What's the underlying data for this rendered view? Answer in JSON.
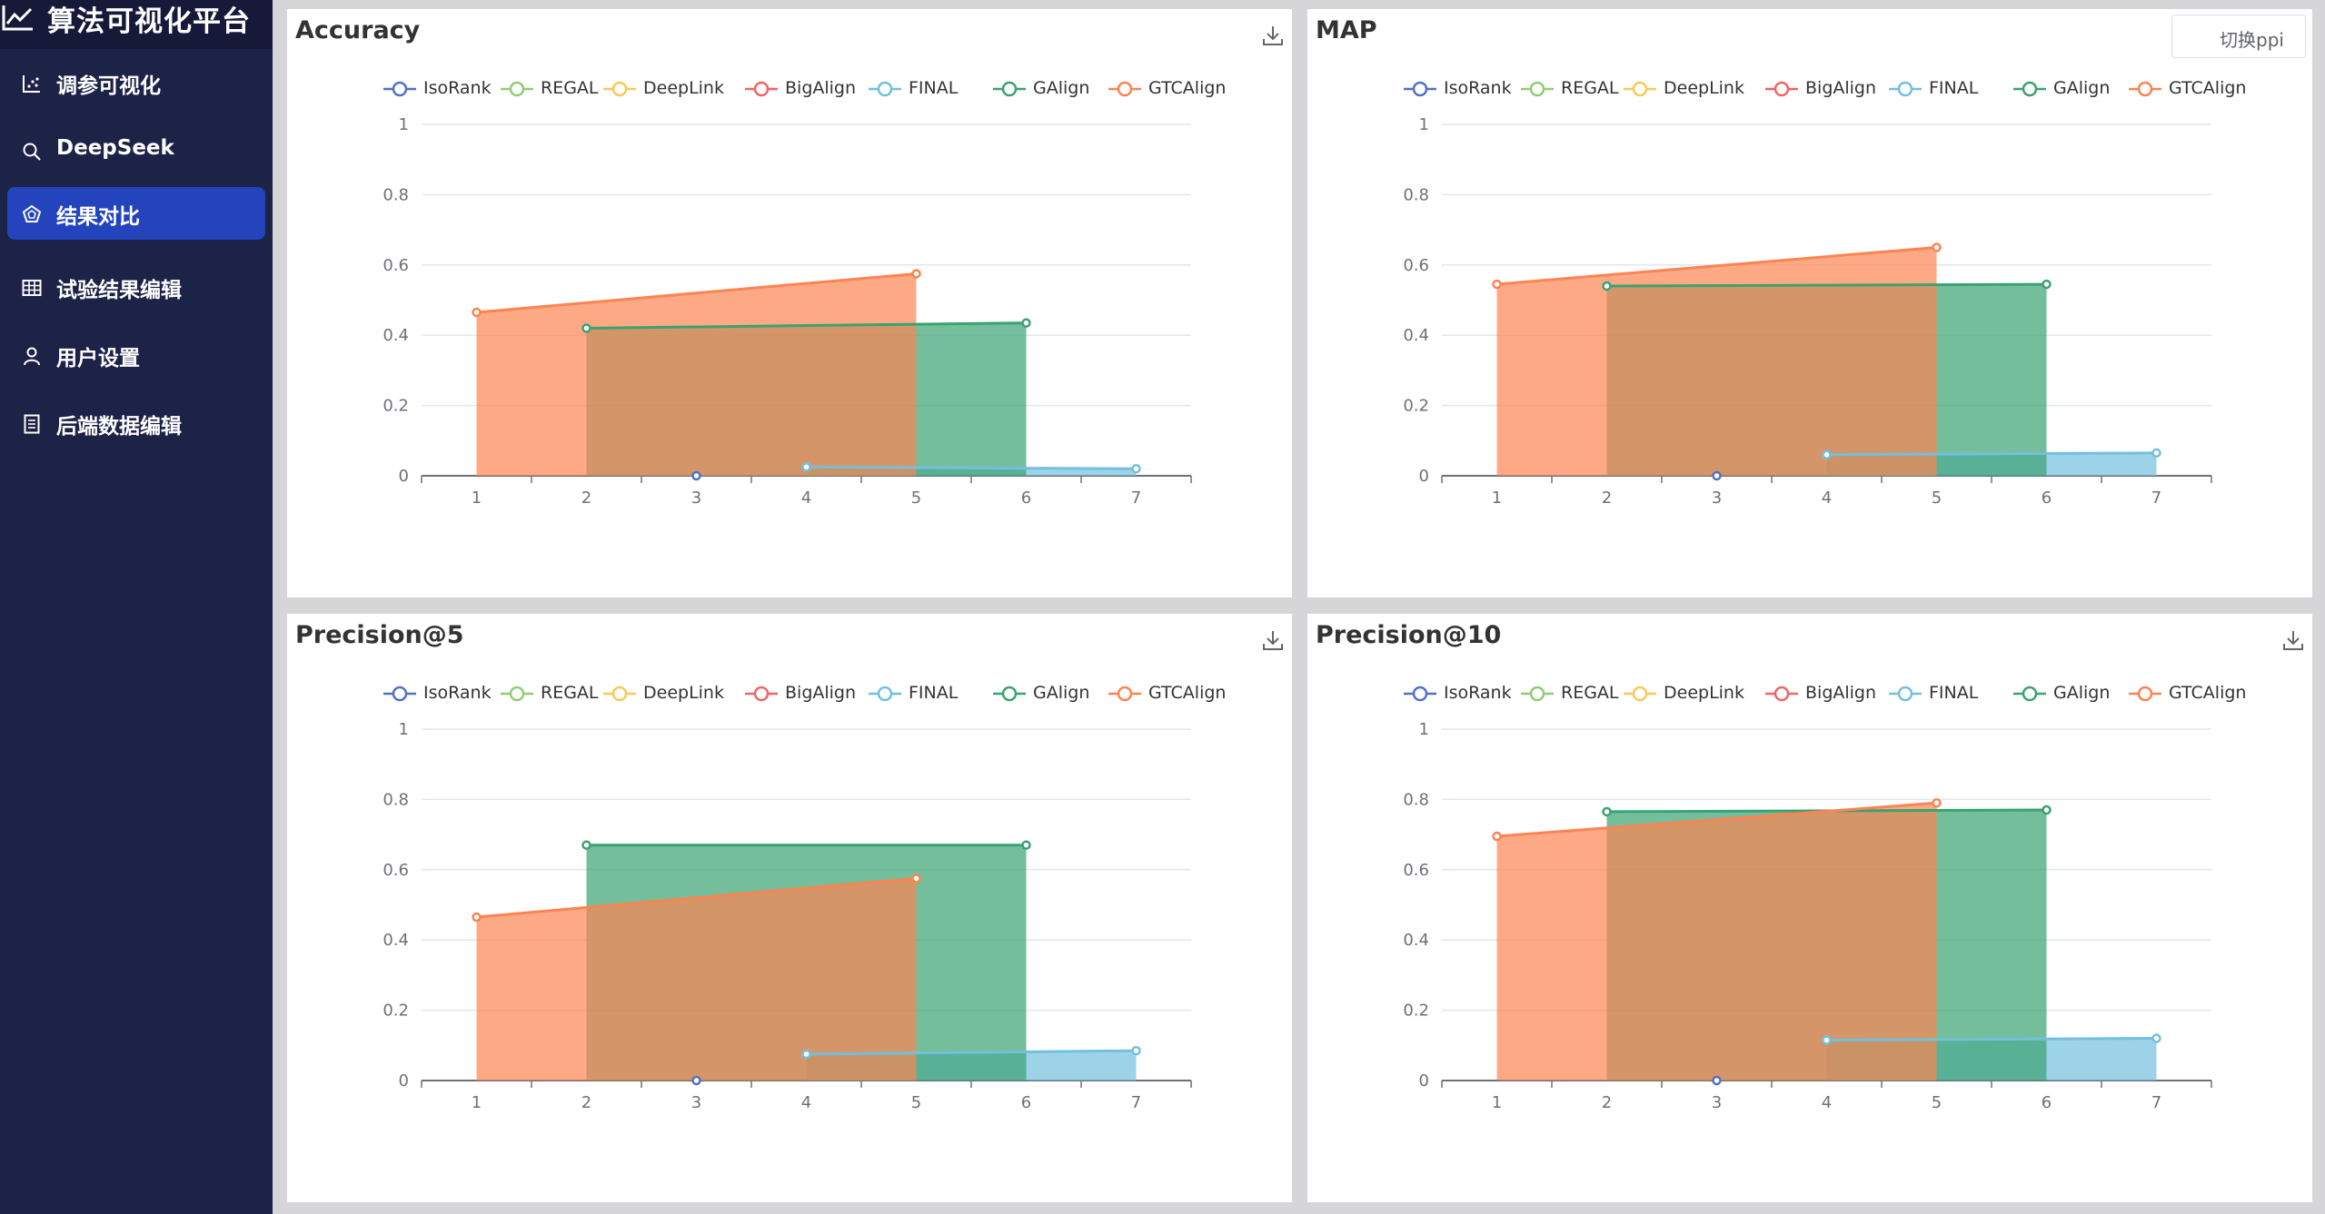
{
  "app": {
    "title": "算法可视化平台",
    "brand_icon": "line-chart-icon"
  },
  "sidebar": {
    "items": [
      {
        "label": "调参可视化",
        "icon": "scatter-chart-icon",
        "active": false
      },
      {
        "label": "DeepSeek",
        "icon": "search-icon",
        "active": false
      },
      {
        "label": "结果对比",
        "icon": "radar-icon",
        "active": true
      },
      {
        "label": "试验结果编辑",
        "icon": "grid-table-icon",
        "active": false
      },
      {
        "label": "用户设置",
        "icon": "user-icon",
        "active": false
      },
      {
        "label": "后端数据编辑",
        "icon": "document-icon",
        "active": false
      }
    ]
  },
  "header": {
    "switch_button": "切换ppi"
  },
  "colors": {
    "sidebar_bg": "#1d2247",
    "active_item": "#2344bd",
    "IsoRank": "#5470c6",
    "REGAL": "#91cc75",
    "DeepLink": "#fac858",
    "BigAlign": "#ee6666",
    "FINAL": "#73c0de",
    "GAlign": "#3ba272",
    "GTCAlign": "#fc8452"
  },
  "legend": [
    "IsoRank",
    "REGAL",
    "DeepLink",
    "BigAlign",
    "FINAL",
    "GAlign",
    "GTCAlign"
  ],
  "chart_data": [
    {
      "type": "area",
      "title": "Accuracy",
      "x": [
        1,
        2,
        3,
        4,
        5,
        6,
        7
      ],
      "ylim": [
        0,
        1
      ],
      "yticks": [
        0,
        0.2,
        0.4,
        0.6,
        0.8,
        1
      ],
      "grid": true,
      "legend_position": "top",
      "series": [
        {
          "name": "IsoRank",
          "points": [
            [
              3,
              0.0
            ]
          ]
        },
        {
          "name": "REGAL",
          "points": []
        },
        {
          "name": "DeepLink",
          "points": []
        },
        {
          "name": "BigAlign",
          "points": []
        },
        {
          "name": "FINAL",
          "points": [
            [
              4,
              0.025
            ],
            [
              7,
              0.02
            ]
          ]
        },
        {
          "name": "GAlign",
          "points": [
            [
              2,
              0.42
            ],
            [
              6,
              0.435
            ]
          ]
        },
        {
          "name": "GTCAlign",
          "points": [
            [
              1,
              0.465
            ],
            [
              5,
              0.575
            ]
          ]
        }
      ]
    },
    {
      "type": "area",
      "title": "MAP",
      "x": [
        1,
        2,
        3,
        4,
        5,
        6,
        7
      ],
      "ylim": [
        0,
        1
      ],
      "yticks": [
        0,
        0.2,
        0.4,
        0.6,
        0.8,
        1
      ],
      "grid": true,
      "legend_position": "top",
      "series": [
        {
          "name": "IsoRank",
          "points": [
            [
              3,
              0.0
            ]
          ]
        },
        {
          "name": "REGAL",
          "points": []
        },
        {
          "name": "DeepLink",
          "points": []
        },
        {
          "name": "BigAlign",
          "points": []
        },
        {
          "name": "FINAL",
          "points": [
            [
              4,
              0.06
            ],
            [
              7,
              0.065
            ]
          ]
        },
        {
          "name": "GAlign",
          "points": [
            [
              2,
              0.54
            ],
            [
              6,
              0.545
            ]
          ]
        },
        {
          "name": "GTCAlign",
          "points": [
            [
              1,
              0.545
            ],
            [
              5,
              0.65
            ]
          ]
        }
      ]
    },
    {
      "type": "area",
      "title": "Precision@5",
      "x": [
        1,
        2,
        3,
        4,
        5,
        6,
        7
      ],
      "ylim": [
        0,
        1
      ],
      "yticks": [
        0,
        0.2,
        0.4,
        0.6,
        0.8,
        1
      ],
      "grid": true,
      "legend_position": "top",
      "series": [
        {
          "name": "IsoRank",
          "points": [
            [
              3,
              0.0
            ]
          ]
        },
        {
          "name": "REGAL",
          "points": []
        },
        {
          "name": "DeepLink",
          "points": []
        },
        {
          "name": "BigAlign",
          "points": []
        },
        {
          "name": "FINAL",
          "points": [
            [
              4,
              0.075
            ],
            [
              7,
              0.085
            ]
          ]
        },
        {
          "name": "GAlign",
          "points": [
            [
              2,
              0.67
            ],
            [
              6,
              0.67
            ]
          ]
        },
        {
          "name": "GTCAlign",
          "points": [
            [
              1,
              0.465
            ],
            [
              5,
              0.575
            ]
          ]
        }
      ]
    },
    {
      "type": "area",
      "title": "Precision@10",
      "x": [
        1,
        2,
        3,
        4,
        5,
        6,
        7
      ],
      "ylim": [
        0,
        1
      ],
      "yticks": [
        0,
        0.2,
        0.4,
        0.6,
        0.8,
        1
      ],
      "grid": true,
      "legend_position": "top",
      "series": [
        {
          "name": "IsoRank",
          "points": [
            [
              3,
              0.0
            ]
          ]
        },
        {
          "name": "REGAL",
          "points": []
        },
        {
          "name": "DeepLink",
          "points": []
        },
        {
          "name": "BigAlign",
          "points": []
        },
        {
          "name": "FINAL",
          "points": [
            [
              4,
              0.115
            ],
            [
              7,
              0.12
            ]
          ]
        },
        {
          "name": "GAlign",
          "points": [
            [
              2,
              0.765
            ],
            [
              6,
              0.77
            ]
          ]
        },
        {
          "name": "GTCAlign",
          "points": [
            [
              1,
              0.695
            ],
            [
              5,
              0.79
            ]
          ]
        }
      ]
    }
  ]
}
